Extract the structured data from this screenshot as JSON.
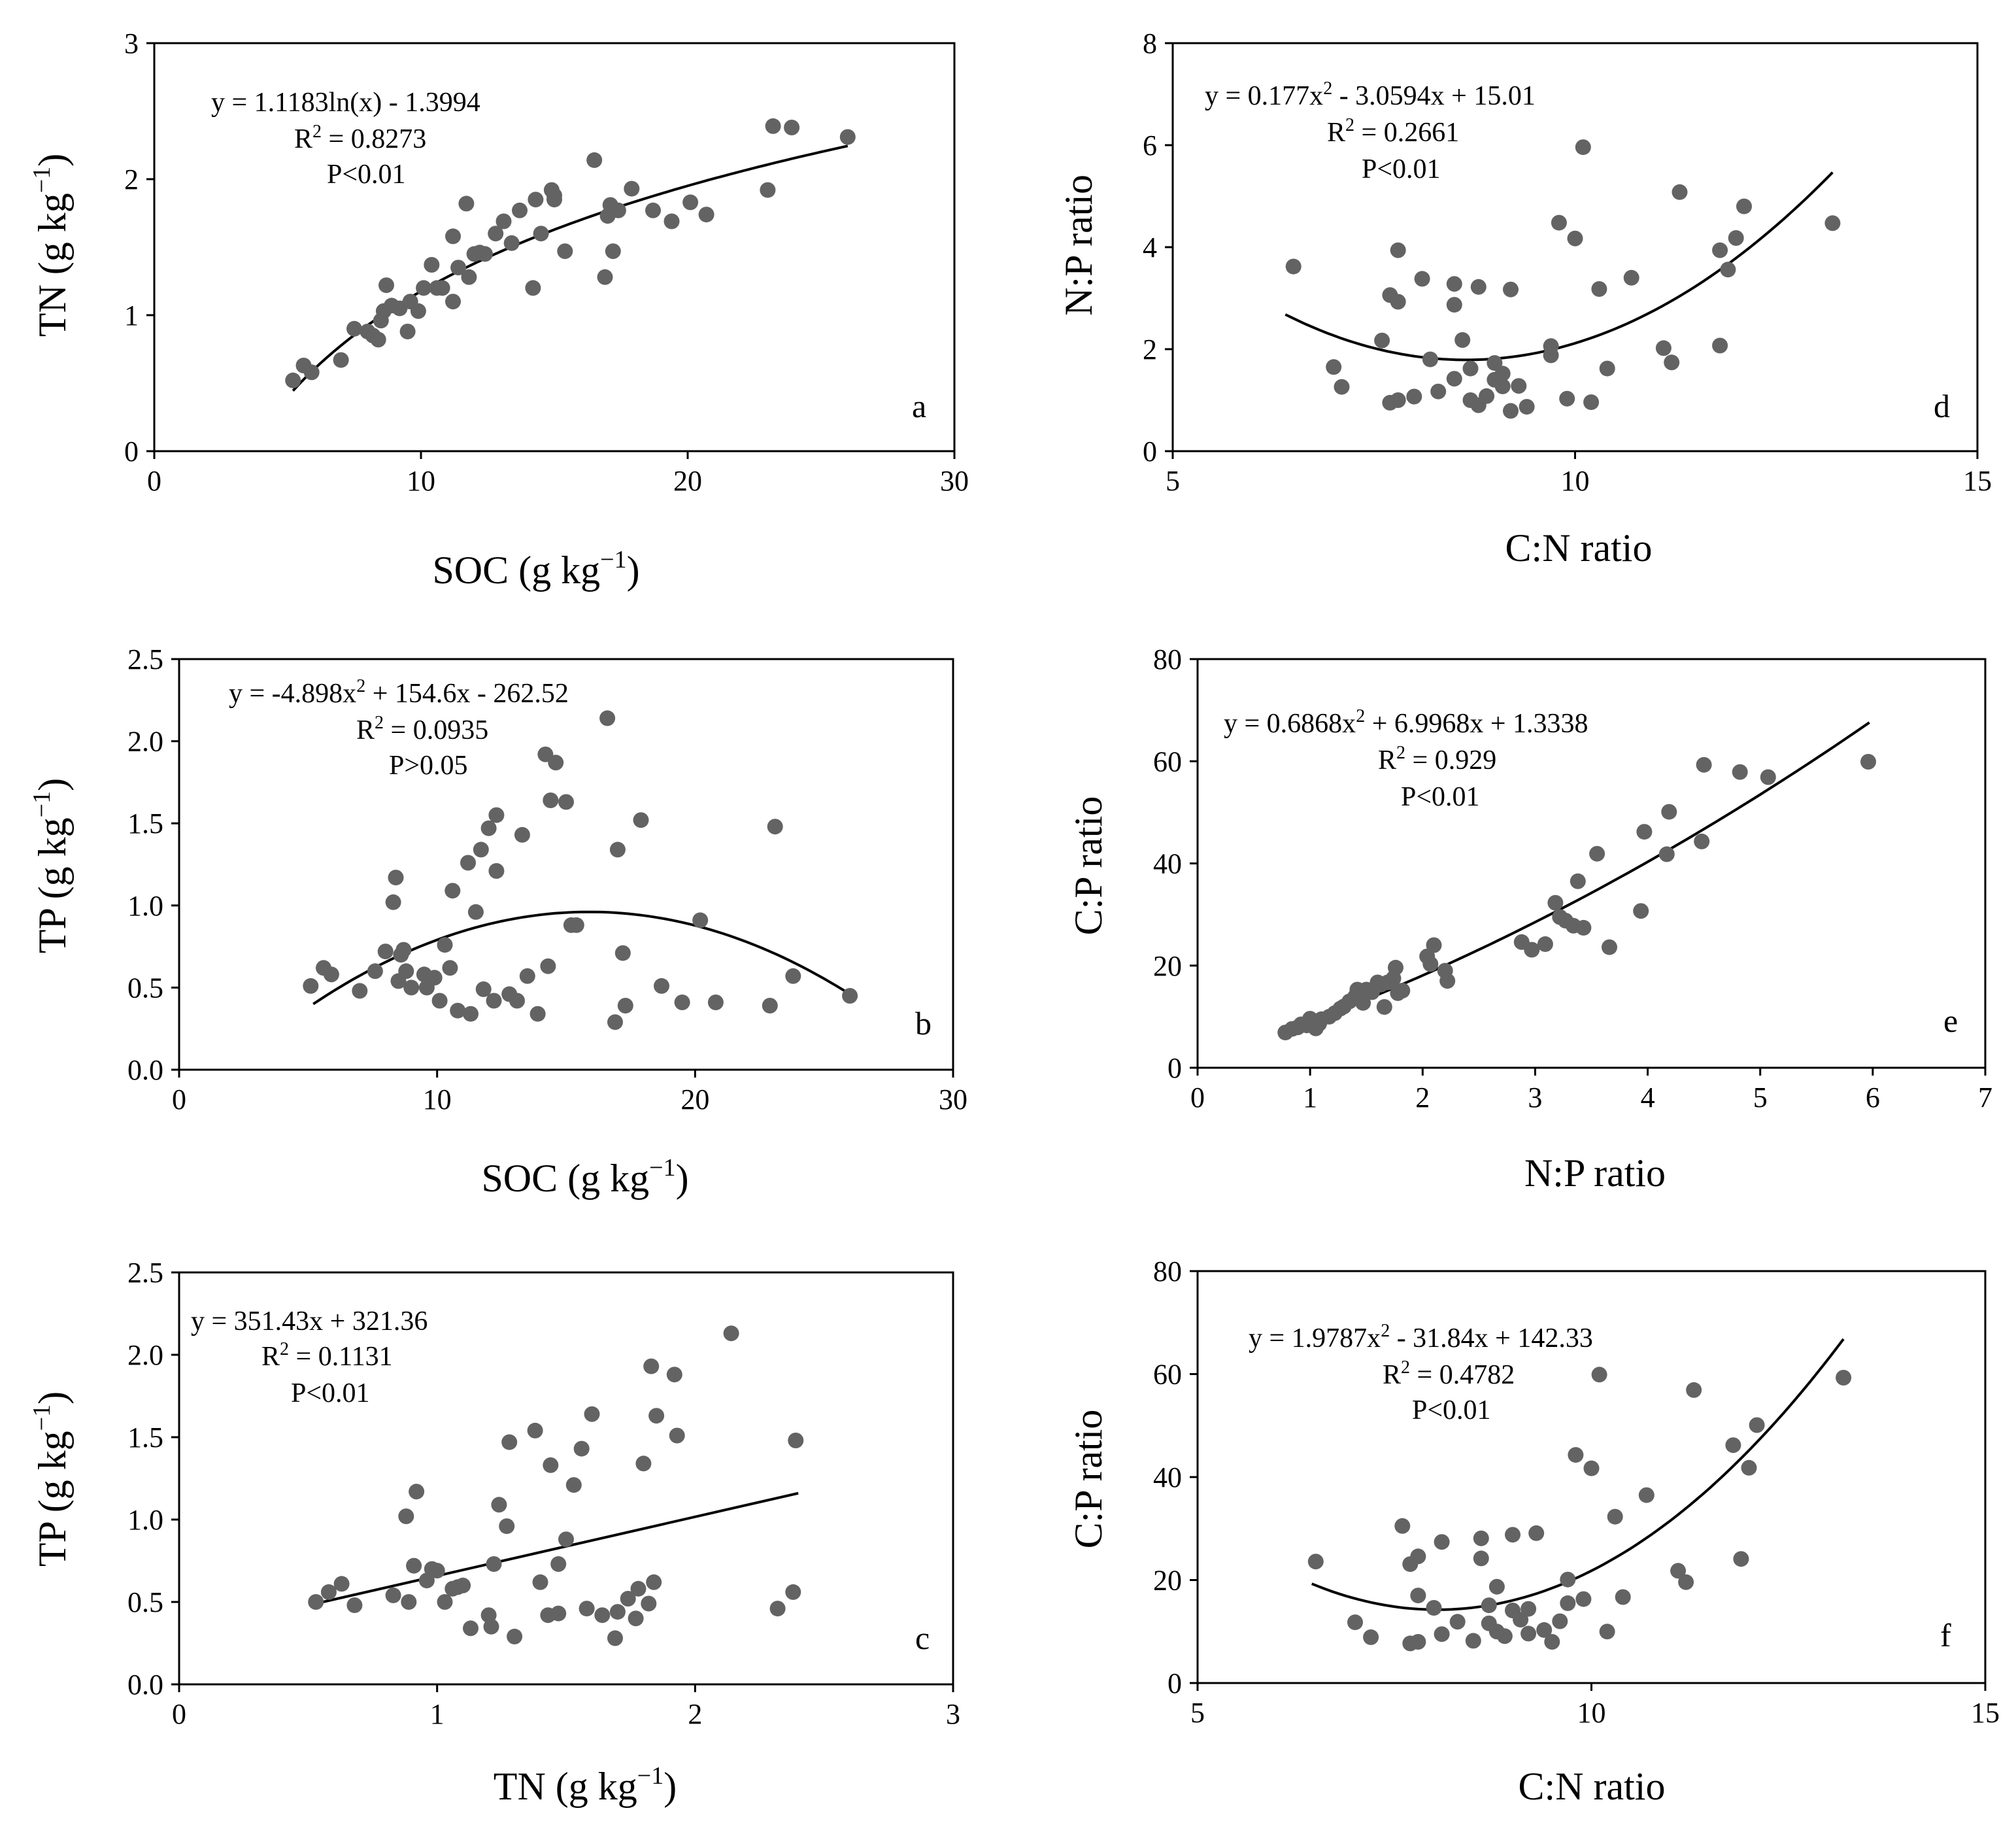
{
  "figure": {
    "name": "Scatter plots of soil stoichiometric relationships"
  },
  "chart_data": [
    {
      "panel": "a",
      "type": "scatter",
      "fit_type": "log",
      "fit": {
        "a": 1.1183,
        "b": -1.3994
      },
      "fit_range": [
        5.2,
        26
      ],
      "xlabel": "SOC (g kg",
      "xunit_sup": "−1",
      "xlabel_end": ")",
      "ylabel": "TN (g kg",
      "yunit_sup": "−1",
      "ylabel_end": ")",
      "xlim": [
        0,
        30
      ],
      "ylim": [
        0,
        3
      ],
      "xticks": [
        0,
        10,
        20,
        30
      ],
      "yticks": [
        0,
        1,
        2,
        3
      ],
      "xtick_labels": [
        "0",
        "10",
        "20",
        "30"
      ],
      "ytick_labels": [
        "0",
        "1",
        "2",
        "3"
      ],
      "eq_parts": [
        "y = 1.1183ln(x) - 1.3994"
      ],
      "r2_label": "R",
      "r2_value": " = 0.8273",
      "p_text": "P<0.01",
      "x": [
        5.2,
        5.6,
        5.9,
        7.0,
        7.5,
        8.0,
        8.2,
        8.4,
        8.5,
        8.6,
        8.7,
        8.9,
        9.2,
        9.5,
        9.6,
        9.9,
        10.1,
        10.4,
        10.6,
        10.8,
        11.2,
        11.2,
        11.4,
        11.7,
        11.8,
        12.0,
        12.2,
        12.4,
        12.8,
        13.1,
        13.4,
        13.7,
        14.2,
        14.3,
        14.5,
        14.9,
        15.0,
        15.4,
        16.5,
        16.9,
        17.0,
        17.1,
        17.2,
        17.4,
        17.9,
        18.7,
        19.4,
        20.1,
        20.7,
        23.0,
        23.2,
        23.9,
        26.0,
        15.0
      ],
      "y": [
        0.52,
        0.63,
        0.58,
        0.67,
        0.9,
        0.88,
        0.85,
        0.82,
        0.96,
        1.03,
        1.22,
        1.07,
        1.05,
        0.88,
        1.1,
        1.03,
        1.2,
        1.37,
        1.2,
        1.2,
        1.58,
        1.1,
        1.35,
        1.82,
        1.28,
        1.45,
        1.46,
        1.45,
        1.6,
        1.69,
        1.53,
        1.77,
        1.2,
        1.85,
        1.6,
        1.92,
        1.85,
        1.47,
        2.14,
        1.28,
        1.73,
        1.81,
        1.47,
        1.77,
        1.93,
        1.77,
        1.69,
        1.83,
        1.74,
        1.92,
        2.39,
        2.38,
        2.31,
        1.88
      ]
    },
    {
      "panel": "b",
      "type": "scatter",
      "fit_type": "poly",
      "fit_range": [
        5.2,
        26
      ],
      "xlabel": "SOC (g kg",
      "xunit_sup": "−1",
      "xlabel_end": ")",
      "ylabel": "TP (g kg",
      "yunit_sup": "−1",
      "ylabel_end": ")",
      "xlim": [
        0,
        30
      ],
      "ylim": [
        0,
        2.5
      ],
      "xticks": [
        0,
        10,
        20,
        30
      ],
      "yticks": [
        0,
        0.5,
        1.0,
        1.5,
        2.0,
        2.5
      ],
      "xtick_labels": [
        "0",
        "10",
        "20",
        "30"
      ],
      "ytick_labels": [
        "0.0",
        "0.5",
        "1.0",
        "1.5",
        "2.0",
        "2.5"
      ],
      "eq_parts": [
        "y = -4.898x",
        "2",
        " + 154.6x - 262.52"
      ],
      "r2_label": "R",
      "r2_value": " = 0.0935",
      "p_text": "P>0.05",
      "fit_curve": {
        "x": [
          5.2,
          15.5,
          26
        ],
        "y": [
          0.4,
          0.96,
          0.46
        ]
      },
      "x": [
        5.1,
        5.6,
        5.9,
        7.0,
        7.6,
        8.0,
        8.3,
        8.4,
        8.5,
        8.6,
        8.7,
        8.8,
        9.0,
        9.5,
        9.6,
        9.9,
        10.1,
        10.3,
        10.5,
        10.6,
        10.8,
        11.2,
        11.3,
        11.5,
        11.7,
        11.8,
        12.0,
        12.2,
        12.3,
        12.3,
        12.8,
        13.1,
        13.3,
        13.5,
        13.9,
        14.2,
        14.3,
        14.4,
        14.6,
        15.0,
        15.2,
        15.4,
        16.6,
        16.9,
        17.0,
        17.2,
        17.3,
        17.9,
        18.7,
        19.5,
        20.2,
        20.8,
        22.9,
        23.1,
        23.8,
        26.0
      ],
      "y": [
        0.51,
        0.62,
        0.58,
        0.48,
        0.6,
        0.72,
        1.02,
        1.17,
        0.54,
        0.7,
        0.73,
        0.6,
        0.5,
        0.58,
        0.5,
        0.56,
        0.42,
        0.76,
        0.62,
        1.09,
        0.36,
        1.26,
        0.34,
        0.96,
        1.34,
        0.49,
        1.47,
        0.42,
        1.55,
        1.21,
        0.46,
        0.42,
        1.43,
        0.57,
        0.34,
        1.92,
        0.63,
        1.64,
        1.87,
        1.63,
        0.88,
        0.88,
        2.14,
        0.29,
        1.34,
        0.71,
        0.39,
        1.52,
        0.51,
        0.41,
        0.91,
        0.41,
        0.39,
        1.48,
        0.57,
        0.45
      ]
    },
    {
      "panel": "c",
      "type": "scatter",
      "fit_type": "linear",
      "fit_range": [
        0.53,
        2.4
      ],
      "xlabel": "TN (g kg",
      "xunit_sup": "−1",
      "xlabel_end": ")",
      "ylabel": "TP (g kg",
      "yunit_sup": "−1",
      "ylabel_end": ")",
      "xlim": [
        0,
        3
      ],
      "ylim": [
        0,
        2.5
      ],
      "xticks": [
        0,
        1,
        2,
        3
      ],
      "yticks": [
        0,
        0.5,
        1.0,
        1.5,
        2.0,
        2.5
      ],
      "xtick_labels": [
        "0",
        "1",
        "2",
        "3"
      ],
      "ytick_labels": [
        "0.0",
        "0.5",
        "1.0",
        "1.5",
        "2.0",
        "2.5"
      ],
      "eq_parts": [
        "y = 351.43x + 321.36"
      ],
      "r2_label": "R",
      "r2_value": " = 0.1131",
      "p_text": "P<0.01",
      "fit_curve": {
        "x": [
          0.53,
          2.4
        ],
        "y": [
          0.49,
          1.16
        ]
      },
      "x": [
        0.53,
        0.58,
        0.63,
        0.68,
        0.83,
        0.88,
        0.89,
        0.91,
        0.92,
        0.96,
        0.98,
        1.0,
        1.03,
        1.06,
        1.08,
        1.13,
        1.2,
        1.21,
        1.22,
        1.24,
        1.27,
        1.28,
        1.3,
        1.38,
        1.4,
        1.43,
        1.44,
        1.47,
        1.5,
        1.53,
        1.56,
        1.58,
        1.6,
        1.64,
        1.69,
        1.7,
        1.74,
        1.77,
        1.78,
        1.8,
        1.82,
        1.83,
        1.84,
        1.85,
        1.92,
        1.93,
        2.14,
        2.32,
        2.38,
        2.39,
        1.47,
        1.1
      ],
      "y": [
        0.5,
        0.56,
        0.61,
        0.48,
        0.54,
        1.02,
        0.5,
        0.72,
        1.17,
        0.63,
        0.7,
        0.69,
        0.5,
        0.58,
        0.59,
        0.34,
        0.42,
        0.35,
        0.73,
        1.09,
        0.96,
        1.47,
        0.29,
        1.54,
        0.62,
        0.42,
        1.33,
        0.43,
        0.88,
        1.21,
        1.43,
        0.46,
        1.64,
        0.42,
        0.28,
        0.44,
        0.52,
        0.4,
        0.58,
        1.34,
        0.49,
        1.93,
        0.62,
        1.63,
        1.88,
        1.51,
        2.13,
        0.46,
        0.56,
        1.48,
        0.73,
        0.6
      ]
    },
    {
      "panel": "d",
      "type": "scatter",
      "fit_type": "poly",
      "fit": {
        "a": 0.177,
        "b": -3.0594,
        "c": 15.01
      },
      "fit_range": [
        6.4,
        13.2
      ],
      "xlabel": "C:N ratio",
      "ylabel": "N:P ratio",
      "xlim": [
        5,
        15
      ],
      "ylim": [
        0,
        8
      ],
      "xticks": [
        5,
        10,
        15
      ],
      "yticks": [
        0,
        2,
        4,
        6,
        8
      ],
      "xtick_labels": [
        "5",
        "10",
        "15"
      ],
      "ytick_labels": [
        "0",
        "2",
        "4",
        "6",
        "8"
      ],
      "eq_parts": [
        "y = 0.177x",
        "2",
        " - 3.0594x + 15.01"
      ],
      "r2_label": "R",
      "r2_value": " = 0.2661",
      "p_text": "P<0.01",
      "x": [
        6.5,
        7.0,
        7.1,
        7.6,
        7.7,
        7.7,
        7.8,
        7.8,
        7.8,
        8.0,
        8.1,
        8.2,
        8.3,
        8.5,
        8.5,
        8.5,
        8.6,
        8.7,
        8.7,
        8.8,
        8.8,
        9.0,
        9.0,
        9.1,
        9.2,
        9.2,
        9.3,
        9.4,
        9.7,
        9.7,
        9.8,
        9.9,
        10.0,
        10.1,
        10.2,
        10.3,
        10.4,
        10.7,
        11.1,
        11.2,
        11.3,
        11.8,
        11.9,
        12.0,
        12.1,
        11.8,
        13.2,
        9.1,
        8.9
      ],
      "y": [
        3.62,
        1.65,
        1.26,
        2.17,
        3.06,
        0.95,
        2.93,
        3.94,
        1.0,
        1.07,
        3.38,
        1.8,
        1.17,
        1.42,
        3.28,
        2.87,
        2.18,
        1.0,
        1.62,
        3.22,
        0.9,
        1.73,
        1.4,
        1.27,
        3.17,
        0.79,
        1.28,
        0.87,
        1.88,
        2.06,
        4.48,
        1.03,
        4.17,
        5.96,
        0.96,
        3.18,
        1.62,
        3.4,
        2.02,
        1.74,
        5.08,
        3.94,
        3.56,
        4.18,
        4.8,
        2.07,
        4.47,
        1.52,
        1.08
      ]
    },
    {
      "panel": "e",
      "type": "scatter",
      "fit_type": "poly",
      "fit": {
        "a": 0.6868,
        "b": 6.9968,
        "c": 1.3338
      },
      "fit_range": [
        0.78,
        5.97
      ],
      "xlabel": "N:P ratio",
      "ylabel": "C:P ratio",
      "xlim": [
        0,
        7
      ],
      "ylim": [
        0,
        80
      ],
      "xticks": [
        0,
        1,
        2,
        3,
        4,
        5,
        6,
        7
      ],
      "yticks": [
        0,
        20,
        40,
        60,
        80
      ],
      "xtick_labels": [
        "0",
        "1",
        "2",
        "3",
        "4",
        "5",
        "6",
        "7"
      ],
      "ytick_labels": [
        "0",
        "20",
        "40",
        "60",
        "80"
      ],
      "eq_parts": [
        "y = 0.6868x",
        "2",
        " + 6.9968x + 1.3338"
      ],
      "r2_label": "R",
      "r2_value": " = 0.929",
      "p_text": "P<0.01",
      "x": [
        0.78,
        0.84,
        0.89,
        0.92,
        0.97,
        1.0,
        1.02,
        1.05,
        1.08,
        1.1,
        1.17,
        1.22,
        1.27,
        1.3,
        1.35,
        1.4,
        1.42,
        1.47,
        1.5,
        1.55,
        1.6,
        1.63,
        1.66,
        1.69,
        1.74,
        1.76,
        1.78,
        1.82,
        2.04,
        2.07,
        2.1,
        2.2,
        2.22,
        2.88,
        2.97,
        3.09,
        3.18,
        3.22,
        3.27,
        3.34,
        3.38,
        3.43,
        3.55,
        3.66,
        3.94,
        3.97,
        4.17,
        4.19,
        4.48,
        4.5,
        4.82,
        5.07,
        5.96
      ],
      "y": [
        6.9,
        7.6,
        7.9,
        8.5,
        8.3,
        9.6,
        9.1,
        7.7,
        8.6,
        9.5,
        10.0,
        10.7,
        11.6,
        12.0,
        13.0,
        13.9,
        15.3,
        12.7,
        15.3,
        14.8,
        16.7,
        16.3,
        11.9,
        16.7,
        17.5,
        19.6,
        14.6,
        15.1,
        21.8,
        20.3,
        24.0,
        19.0,
        17.0,
        24.6,
        23.1,
        24.2,
        32.3,
        29.5,
        28.8,
        27.8,
        36.5,
        27.4,
        41.9,
        23.6,
        30.7,
        46.2,
        41.8,
        50.1,
        44.3,
        59.3,
        57.9,
        56.9,
        59.9
      ]
    },
    {
      "panel": "f",
      "type": "scatter",
      "fit_type": "poly",
      "fit": {
        "a": 1.9787,
        "b": -31.84,
        "c": 142.33
      },
      "fit_range": [
        6.45,
        13.2
      ],
      "xlabel": "C:N ratio",
      "ylabel": "C:P ratio",
      "xlim": [
        5,
        15
      ],
      "ylim": [
        0,
        80
      ],
      "xticks": [
        5,
        10,
        15
      ],
      "yticks": [
        0,
        20,
        40,
        60,
        80
      ],
      "xtick_labels": [
        "5",
        "10",
        "15"
      ],
      "ytick_labels": [
        "0",
        "20",
        "40",
        "60",
        "80"
      ],
      "eq_parts": [
        "y = 1.9787x",
        "2",
        " - 31.84x + 142.33"
      ],
      "r2_label": "R",
      "r2_value": " = 0.4782",
      "p_text": "P<0.01",
      "x": [
        6.5,
        7.0,
        7.2,
        7.6,
        7.7,
        7.7,
        7.8,
        7.8,
        7.8,
        8.0,
        8.1,
        8.1,
        8.3,
        8.5,
        8.6,
        8.6,
        8.7,
        8.7,
        8.8,
        8.8,
        8.9,
        9.0,
        9.0,
        9.1,
        9.2,
        9.2,
        9.3,
        9.4,
        9.7,
        9.7,
        9.8,
        9.9,
        10.0,
        10.1,
        10.2,
        10.3,
        10.4,
        10.7,
        11.1,
        11.2,
        11.3,
        11.8,
        11.9,
        12.0,
        12.1,
        13.2,
        9.5,
        9.6
      ],
      "y": [
        23.6,
        11.8,
        8.9,
        30.5,
        23.1,
        7.7,
        24.6,
        8.0,
        17.0,
        14.6,
        27.4,
        9.5,
        11.9,
        8.2,
        28.1,
        24.2,
        15.1,
        11.6,
        10.0,
        18.7,
        9.1,
        28.8,
        14.1,
        12.3,
        14.4,
        9.6,
        29.1,
        10.3,
        15.5,
        20.1,
        44.3,
        16.3,
        41.7,
        59.9,
        10.0,
        32.3,
        16.7,
        36.5,
        21.8,
        19.6,
        56.9,
        46.2,
        24.1,
        41.8,
        50.1,
        59.3,
        8.0,
        12.0
      ]
    }
  ]
}
